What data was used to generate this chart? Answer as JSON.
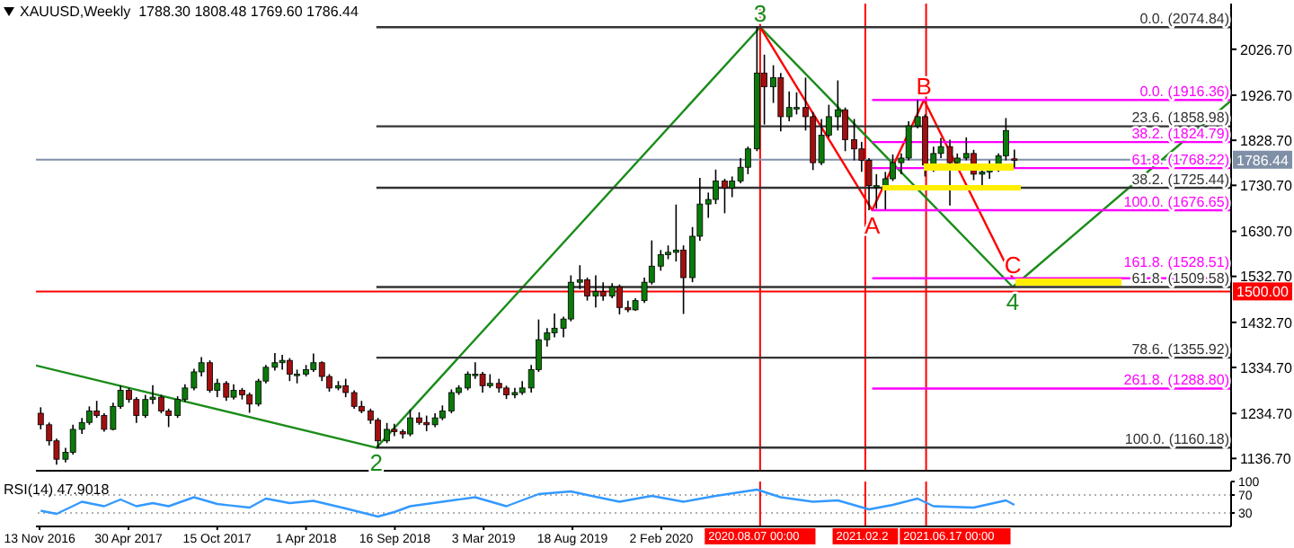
{
  "chart_data": [
    {
      "type": "candlestick",
      "title": "XAUUSD,Weekly  1788.30 1808.48 1769.60 1786.44",
      "tick_labels": "y",
      "marker": "none",
      "line_style": "solid",
      "x": [
        "2016-11-15",
        "2016-12-01",
        "2016-12-15",
        "2017-01-01",
        "2017-01-15",
        "2017-02-01",
        "2017-02-15",
        "2017-03-01",
        "2017-03-15",
        "2017-04-01",
        "2017-04-15",
        "2017-05-01",
        "2017-05-15",
        "2017-06-01",
        "2017-06-15",
        "2017-07-01",
        "2017-07-15",
        "2017-08-01",
        "2017-08-15",
        "2017-09-01",
        "2017-09-15",
        "2017-10-01",
        "2017-10-15",
        "2017-11-01",
        "2017-11-15",
        "2017-12-01",
        "2017-12-15",
        "2018-01-01",
        "2018-01-15",
        "2018-02-01",
        "2018-02-15",
        "2018-03-01",
        "2018-03-15",
        "2018-04-01",
        "2018-04-15",
        "2018-05-01",
        "2018-05-15",
        "2018-06-01",
        "2018-06-15",
        "2018-07-01",
        "2018-07-15",
        "2018-08-01",
        "2018-08-15",
        "2018-09-01",
        "2018-09-15",
        "2018-10-01",
        "2018-10-15",
        "2018-11-01",
        "2018-11-15",
        "2018-12-01",
        "2018-12-15",
        "2019-01-01",
        "2019-01-15",
        "2019-02-01",
        "2019-02-15",
        "2019-03-01",
        "2019-03-15",
        "2019-04-01",
        "2019-04-15",
        "2019-05-01",
        "2019-05-15",
        "2019-06-01",
        "2019-06-15",
        "2019-07-01",
        "2019-07-15",
        "2019-08-01",
        "2019-08-15",
        "2019-09-01",
        "2019-09-15",
        "2019-10-01",
        "2019-10-15",
        "2019-11-01",
        "2019-11-15",
        "2019-12-01",
        "2019-12-15",
        "2020-01-01",
        "2020-01-15",
        "2020-02-01",
        "2020-02-15",
        "2020-03-01",
        "2020-03-15",
        "2020-04-01",
        "2020-04-15",
        "2020-05-01",
        "2020-05-15",
        "2020-06-01",
        "2020-06-15",
        "2020-07-01",
        "2020-07-15",
        "2020-08-01",
        "2020-08-15",
        "2020-09-01",
        "2020-09-15",
        "2020-10-01",
        "2020-10-15",
        "2020-11-01",
        "2020-11-15",
        "2020-12-01",
        "2020-12-15",
        "2021-01-01",
        "2021-01-15",
        "2021-02-01",
        "2021-02-15",
        "2021-03-01",
        "2021-03-15",
        "2021-04-01",
        "2021-04-15",
        "2021-05-01",
        "2021-05-15",
        "2021-06-01",
        "2021-06-15",
        "2021-07-01",
        "2021-07-15",
        "2021-08-01",
        "2021-08-15",
        "2021-09-01",
        "2021-09-15",
        "2021-10-01",
        "2021-10-15",
        "2021-11-01",
        "2021-11-15",
        "2021-12-01"
      ],
      "ohlc": [
        [
          1235,
          1248,
          1200,
          1210
        ],
        [
          1210,
          1215,
          1165,
          1175
        ],
        [
          1175,
          1180,
          1123,
          1135
        ],
        [
          1135,
          1160,
          1128,
          1150
        ],
        [
          1150,
          1210,
          1145,
          1200
        ],
        [
          1200,
          1225,
          1190,
          1215
        ],
        [
          1215,
          1250,
          1210,
          1240
        ],
        [
          1240,
          1262,
          1225,
          1230
        ],
        [
          1230,
          1235,
          1195,
          1200
        ],
        [
          1200,
          1258,
          1198,
          1250
        ],
        [
          1250,
          1295,
          1245,
          1285
        ],
        [
          1285,
          1290,
          1258,
          1265
        ],
        [
          1265,
          1270,
          1214,
          1230
        ],
        [
          1230,
          1275,
          1225,
          1265
        ],
        [
          1265,
          1296,
          1255,
          1270
        ],
        [
          1270,
          1275,
          1235,
          1240
        ],
        [
          1240,
          1245,
          1205,
          1230
        ],
        [
          1230,
          1272,
          1225,
          1265
        ],
        [
          1265,
          1298,
          1260,
          1290
        ],
        [
          1290,
          1332,
          1285,
          1325
        ],
        [
          1325,
          1357,
          1315,
          1345
        ],
        [
          1345,
          1350,
          1280,
          1285
        ],
        [
          1285,
          1310,
          1270,
          1300
        ],
        [
          1300,
          1305,
          1262,
          1270
        ],
        [
          1270,
          1298,
          1265,
          1285
        ],
        [
          1285,
          1290,
          1265,
          1275
        ],
        [
          1275,
          1280,
          1236,
          1255
        ],
        [
          1255,
          1310,
          1250,
          1305
        ],
        [
          1305,
          1340,
          1300,
          1335
        ],
        [
          1335,
          1366,
          1328,
          1345
        ],
        [
          1345,
          1362,
          1330,
          1350
        ],
        [
          1350,
          1355,
          1305,
          1320
        ],
        [
          1320,
          1330,
          1300,
          1320
        ],
        [
          1320,
          1340,
          1315,
          1330
        ],
        [
          1330,
          1365,
          1325,
          1345
        ],
        [
          1345,
          1348,
          1305,
          1315
        ],
        [
          1315,
          1320,
          1282,
          1290
        ],
        [
          1290,
          1305,
          1285,
          1295
        ],
        [
          1295,
          1310,
          1270,
          1280
        ],
        [
          1280,
          1285,
          1245,
          1250
        ],
        [
          1250,
          1262,
          1235,
          1240
        ],
        [
          1240,
          1245,
          1212,
          1220
        ],
        [
          1220,
          1225,
          1160.18,
          1175
        ],
        [
          1175,
          1214,
          1170,
          1200
        ],
        [
          1200,
          1212,
          1185,
          1195
        ],
        [
          1195,
          1200,
          1180,
          1190
        ],
        [
          1190,
          1243,
          1185,
          1225
        ],
        [
          1225,
          1237,
          1210,
          1215
        ],
        [
          1215,
          1230,
          1196,
          1210
        ],
        [
          1210,
          1235,
          1205,
          1225
        ],
        [
          1225,
          1252,
          1220,
          1240
        ],
        [
          1240,
          1287,
          1235,
          1280
        ],
        [
          1280,
          1296,
          1275,
          1290
        ],
        [
          1290,
          1326,
          1285,
          1320
        ],
        [
          1320,
          1346,
          1310,
          1320
        ],
        [
          1320,
          1325,
          1280,
          1295
        ],
        [
          1295,
          1320,
          1290,
          1300
        ],
        [
          1300,
          1310,
          1280,
          1290
        ],
        [
          1290,
          1295,
          1266,
          1275
        ],
        [
          1275,
          1290,
          1268,
          1280
        ],
        [
          1280,
          1305,
          1275,
          1290
        ],
        [
          1290,
          1340,
          1280,
          1330
        ],
        [
          1330,
          1439,
          1325,
          1395
        ],
        [
          1395,
          1420,
          1380,
          1410
        ],
        [
          1410,
          1452,
          1400,
          1420
        ],
        [
          1420,
          1445,
          1400,
          1440
        ],
        [
          1440,
          1535,
          1435,
          1520
        ],
        [
          1520,
          1557,
          1505,
          1525
        ],
        [
          1525,
          1530,
          1480,
          1490
        ],
        [
          1490,
          1535,
          1465,
          1500
        ],
        [
          1500,
          1520,
          1480,
          1490
        ],
        [
          1490,
          1518,
          1485,
          1510
        ],
        [
          1510,
          1515,
          1450,
          1465
        ],
        [
          1465,
          1480,
          1455,
          1460
        ],
        [
          1460,
          1485,
          1458,
          1480
        ],
        [
          1480,
          1530,
          1475,
          1520
        ],
        [
          1520,
          1611,
          1515,
          1555
        ],
        [
          1555,
          1590,
          1545,
          1580
        ],
        [
          1580,
          1600,
          1570,
          1585
        ],
        [
          1585,
          1689,
          1565,
          1590
        ],
        [
          1590,
          1600,
          1451,
          1530
        ],
        [
          1530,
          1640,
          1520,
          1620
        ],
        [
          1620,
          1747,
          1610,
          1690
        ],
        [
          1690,
          1715,
          1660,
          1700
        ],
        [
          1700,
          1765,
          1690,
          1740
        ],
        [
          1740,
          1745,
          1670,
          1725
        ],
        [
          1725,
          1750,
          1705,
          1740
        ],
        [
          1740,
          1790,
          1735,
          1770
        ],
        [
          1770,
          1815,
          1755,
          1810
        ],
        [
          1810,
          2074.84,
          1805,
          1975
        ],
        [
          1975,
          2015,
          1863,
          1945
        ],
        [
          1945,
          1992,
          1910,
          1965
        ],
        [
          1965,
          1975,
          1848,
          1880
        ],
        [
          1880,
          1935,
          1870,
          1900
        ],
        [
          1900,
          1933,
          1885,
          1900
        ],
        [
          1900,
          1965,
          1850,
          1880
        ],
        [
          1880,
          1890,
          1764,
          1780
        ],
        [
          1780,
          1875,
          1775,
          1840
        ],
        [
          1840,
          1906,
          1835,
          1880
        ],
        [
          1880,
          1959,
          1850,
          1895
        ],
        [
          1895,
          1900,
          1805,
          1830
        ],
        [
          1830,
          1875,
          1785,
          1810
        ],
        [
          1810,
          1825,
          1760,
          1785
        ],
        [
          1785,
          1790,
          1676.65,
          1730
        ],
        [
          1730,
          1755,
          1680,
          1730
        ],
        [
          1730,
          1760,
          1678,
          1745
        ],
        [
          1745,
          1798,
          1740,
          1780
        ],
        [
          1780,
          1800,
          1755,
          1790
        ],
        [
          1790,
          1870,
          1785,
          1860
        ],
        [
          1860,
          1916.36,
          1855,
          1880
        ],
        [
          1880,
          1885,
          1750,
          1775
        ],
        [
          1775,
          1815,
          1760,
          1800
        ],
        [
          1800,
          1834,
          1790,
          1815
        ],
        [
          1815,
          1830,
          1687,
          1780
        ],
        [
          1780,
          1800,
          1775,
          1790
        ],
        [
          1790,
          1835,
          1785,
          1800
        ],
        [
          1800,
          1808,
          1742,
          1755
        ],
        [
          1755,
          1770,
          1722,
          1760
        ],
        [
          1760,
          1785,
          1745,
          1770
        ],
        [
          1770,
          1800,
          1760,
          1795
        ],
        [
          1795,
          1877,
          1785,
          1850
        ],
        [
          1788.3,
          1808.48,
          1769.6,
          1786.44
        ]
      ],
      "series": [
        {
          "type": "line",
          "color": "#1a8c1a",
          "x": [
            "2016-11-06",
            "2018-08-12",
            "2020-08-07",
            "2021-11-28",
            "2023-01-15"
          ],
          "values": [
            1339,
            1160.18,
            2074.84,
            1509.58,
            1915
          ]
        },
        {
          "type": "line",
          "color": "#ff0000",
          "x": [
            "2020-08-07",
            "2021-03-07",
            "2021-06-13",
            "2021-11-28"
          ],
          "values": [
            2074.84,
            1676.65,
            1916.36,
            1528.51
          ]
        },
        {
          "type": "line",
          "color": "#333333",
          "x": [
            "2018-08-12",
            "2023-01-15"
          ],
          "values": [
            2074.84,
            2074.84
          ]
        },
        {
          "type": "line",
          "color": "#333333",
          "x": [
            "2018-08-12",
            "2023-01-15"
          ],
          "values": [
            1858.98,
            1858.98
          ]
        },
        {
          "type": "line",
          "color": "#333333",
          "x": [
            "2018-08-12",
            "2023-01-15"
          ],
          "values": [
            1725.44,
            1725.44
          ]
        },
        {
          "type": "line",
          "color": "#333333",
          "x": [
            "2018-08-12",
            "2023-01-15"
          ],
          "values": [
            1509.58,
            1509.58
          ]
        },
        {
          "type": "line",
          "color": "#333333",
          "x": [
            "2018-08-12",
            "2023-01-15"
          ],
          "values": [
            1355.92,
            1355.92
          ]
        },
        {
          "type": "line",
          "color": "#333333",
          "x": [
            "2018-08-12",
            "2023-01-15"
          ],
          "values": [
            1160.18,
            1160.18
          ]
        },
        {
          "type": "line",
          "color": "#ff00ff",
          "x": [
            "2021-03-07",
            "2023-01-15"
          ],
          "values": [
            1916.36,
            1916.36
          ]
        },
        {
          "type": "line",
          "color": "#ff00ff",
          "x": [
            "2021-03-07",
            "2023-01-15"
          ],
          "values": [
            1824.79,
            1824.79
          ]
        },
        {
          "type": "line",
          "color": "#ff00ff",
          "x": [
            "2021-03-07",
            "2023-01-15"
          ],
          "values": [
            1768.22,
            1768.22
          ]
        },
        {
          "type": "line",
          "color": "#ff00ff",
          "x": [
            "2021-03-07",
            "2023-01-15"
          ],
          "values": [
            1676.65,
            1676.65
          ]
        },
        {
          "type": "line",
          "color": "#ff00ff",
          "x": [
            "2021-03-07",
            "2023-01-15"
          ],
          "values": [
            1528.51,
            1528.51
          ]
        },
        {
          "type": "line",
          "color": "#ff00ff",
          "x": [
            "2021-03-07",
            "2023-01-15"
          ],
          "values": [
            1288.8,
            1288.8
          ]
        }
      ],
      "xlim": [
        "2016-11-06",
        "2023-01-15"
      ],
      "ylim": [
        1110,
        2126
      ],
      "yticks": [
        {
          "value": 1136.7,
          "label": "1136.70"
        },
        {
          "value": 1234.7,
          "label": "1234.70"
        },
        {
          "value": 1334.7,
          "label": "1334.70"
        },
        {
          "value": 1432.7,
          "label": "1432.70"
        },
        {
          "value": 1532.7,
          "label": "1532.70"
        },
        {
          "value": 1630.7,
          "label": "1630.70"
        },
        {
          "value": 1730.7,
          "label": "1730.70"
        },
        {
          "value": 1828.7,
          "label": "1828.70"
        },
        {
          "value": 1926.7,
          "label": "1926.70"
        },
        {
          "value": 2026.7,
          "label": "2026.70"
        }
      ],
      "ref_lines": [
        {
          "axis": "x",
          "value": "2020-08-07",
          "color": "#ff0000"
        },
        {
          "axis": "x",
          "value": "2021-02-22",
          "color": "#ff0000"
        },
        {
          "axis": "x",
          "value": "2021-06-17",
          "color": "#ff0000"
        },
        {
          "axis": "y",
          "value": 1500,
          "label": "1500.00",
          "color": "#ff0000"
        },
        {
          "axis": "y",
          "value": 1786.44,
          "label": "1786.44",
          "color": "#7f8fa6"
        }
      ],
      "annotations": [
        {
          "text": "0.0. (2074.84)",
          "x": "2023-01-15",
          "y": 2074.84
        },
        {
          "text": "23.6. (1858.98)",
          "x": "2023-01-15",
          "y": 1858.98
        },
        {
          "text": "38.2. (1725.44)",
          "x": "2023-01-15",
          "y": 1725.44
        },
        {
          "text": "61.8. (1509.58)",
          "x": "2023-01-15",
          "y": 1509.58
        },
        {
          "text": "78.6. (1355.92)",
          "x": "2023-01-15",
          "y": 1355.92
        },
        {
          "text": "100.0. (1160.18)",
          "x": "2023-01-15",
          "y": 1160.18
        },
        {
          "text": "0.0. (1916.36)",
          "x": "2023-01-15",
          "y": 1916.36
        },
        {
          "text": "38.2. (1824.79)",
          "x": "2023-01-15",
          "y": 1824.79
        },
        {
          "text": "61.8. (1768.22)",
          "x": "2023-01-15",
          "y": 1768.22
        },
        {
          "text": "100.0. (1676.65)",
          "x": "2023-01-15",
          "y": 1676.65
        },
        {
          "text": "161.8. (1528.51)",
          "x": "2023-01-15",
          "y": 1528.51
        },
        {
          "text": "261.8. (1288.80)",
          "x": "2023-01-15",
          "y": 1288.8
        },
        {
          "text": "3",
          "x": "2020-08-07",
          "y": 2074.84
        },
        {
          "text": "2",
          "x": "2018-08-12",
          "y": 1160.18
        },
        {
          "text": "4",
          "x": "2021-11-28",
          "y": 1509.58
        },
        {
          "text": "A",
          "x": "2021-03-07",
          "y": 1676.65
        },
        {
          "text": "B",
          "x": "2021-06-13",
          "y": 1916.36
        },
        {
          "text": "C",
          "x": "2021-11-28",
          "y": 1528.51
        }
      ]
    },
    {
      "type": "line",
      "title": "RSI(14) 47.9018",
      "marker": "none",
      "line_style": "solid",
      "series": [
        {
          "color": "#3399ff",
          "x": [
            "2016-11-15",
            "2016-12-15",
            "2017-02-01",
            "2017-03-15",
            "2017-04-15",
            "2017-05-15",
            "2017-06-15",
            "2017-07-15",
            "2017-09-01",
            "2017-10-15",
            "2017-12-15",
            "2018-01-15",
            "2018-03-01",
            "2018-04-15",
            "2018-06-15",
            "2018-08-15",
            "2018-09-15",
            "2018-10-15",
            "2018-12-15",
            "2019-02-15",
            "2019-04-15",
            "2019-06-15",
            "2019-08-15",
            "2019-09-15",
            "2019-11-15",
            "2020-01-15",
            "2020-03-15",
            "2020-05-15",
            "2020-08-01",
            "2020-09-15",
            "2020-11-15",
            "2021-01-01",
            "2021-03-01",
            "2021-04-15",
            "2021-06-01",
            "2021-07-01",
            "2021-09-15",
            "2021-11-15",
            "2021-12-01"
          ],
          "values": [
            35,
            28,
            55,
            45,
            60,
            45,
            52,
            45,
            65,
            50,
            42,
            62,
            52,
            57,
            40,
            22,
            32,
            45,
            55,
            65,
            45,
            72,
            78,
            70,
            55,
            68,
            55,
            68,
            82,
            65,
            55,
            58,
            38,
            48,
            62,
            45,
            42,
            58,
            47.9018
          ]
        }
      ],
      "xlim": [
        "2016-11-06",
        "2023-01-15"
      ],
      "xticks": [
        {
          "value": "2016-11-13",
          "label": "13 Nov 2016"
        },
        {
          "value": "2017-04-30",
          "label": "30 Apr 2017"
        },
        {
          "value": "2017-10-15",
          "label": "15 Oct 2017"
        },
        {
          "value": "2018-04-01",
          "label": "1 Apr 2018"
        },
        {
          "value": "2018-09-16",
          "label": "16 Sep 2018"
        },
        {
          "value": "2019-03-03",
          "label": "3 Mar 2019"
        },
        {
          "value": "2019-08-18",
          "label": "18 Aug 2019"
        },
        {
          "value": "2020-02-02",
          "label": "2 Feb 2020"
        }
      ],
      "ylim": [
        0,
        100
      ],
      "yticks": [
        30,
        70,
        100
      ],
      "ref_lines": [
        {
          "axis": "y",
          "value": 70,
          "color": "#b0b0b0",
          "line_style": "dotted"
        },
        {
          "axis": "y",
          "value": 30,
          "color": "#b0b0b0",
          "line_style": "dotted"
        },
        {
          "axis": "x",
          "value": "2020-08-07",
          "label": "2020.08.07 00:00",
          "color": "#ff0000"
        },
        {
          "axis": "x",
          "value": "2021-02-22",
          "label": "2021.02.2",
          "color": "#ff0000"
        },
        {
          "axis": "x",
          "value": "2021-06-17",
          "label": "2021.06.17 00:00",
          "color": "#ff0000"
        }
      ]
    }
  ]
}
